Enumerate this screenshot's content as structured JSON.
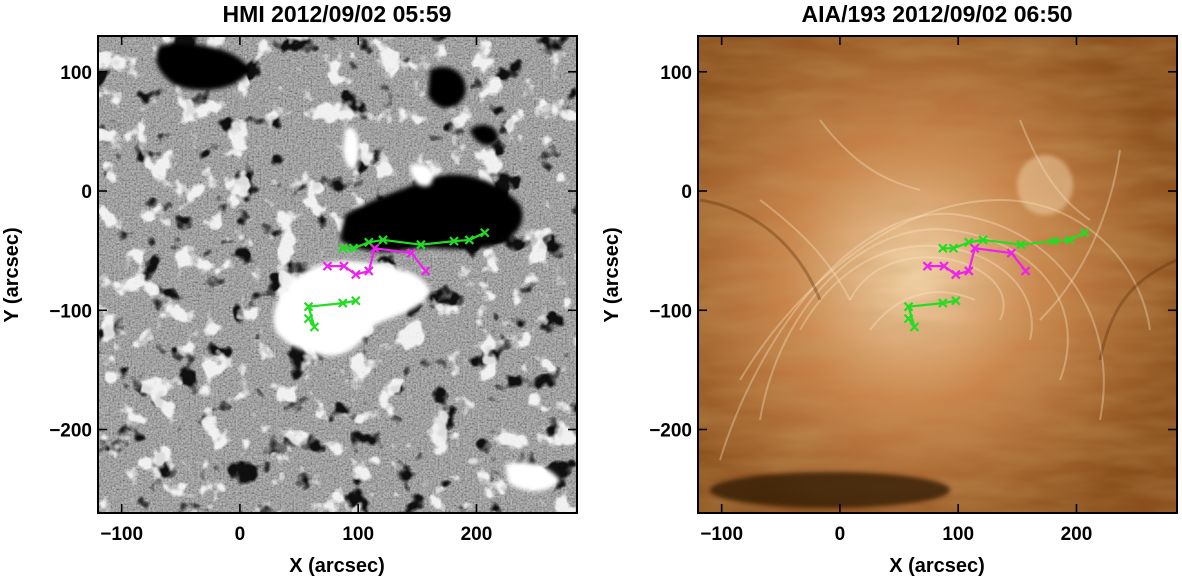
{
  "chart_data": [
    {
      "type": "scatter",
      "title": "HMI 2012/09/02 05:59",
      "xlabel": "X (arcsec)",
      "ylabel": "Y (arcsec)",
      "xlim": [
        -120,
        285
      ],
      "ylim": [
        -270,
        130
      ],
      "xticks": [
        -100,
        0,
        100,
        200
      ],
      "xtick_labels": [
        "−100",
        "0",
        "100",
        "200"
      ],
      "yticks": [
        100,
        0,
        -100,
        -200
      ],
      "ytick_labels": [
        "100",
        "0",
        "−100",
        "−200"
      ],
      "background": "grayscale magnetogram",
      "series": [
        {
          "color": "#22dd22",
          "x": [
            58,
            63,
            58,
            87,
            98
          ],
          "y": [
            -107,
            -114,
            -97,
            -94,
            -92
          ]
        },
        {
          "color": "#22dd22",
          "x": [
            87,
            96,
            109,
            121,
            153,
            181,
            194,
            207
          ],
          "y": [
            -48,
            -48,
            -43,
            -41,
            -45,
            -42,
            -41,
            -35
          ]
        },
        {
          "color": "#ee22ee",
          "x": [
            74,
            88,
            98,
            109,
            114,
            145,
            157
          ],
          "y": [
            -63,
            -63,
            -70,
            -67,
            -48,
            -52,
            -67
          ]
        }
      ]
    },
    {
      "type": "scatter",
      "title": "AIA/193 2012/09/02 06:50",
      "xlabel": "X (arcsec)",
      "ylabel": "Y (arcsec)",
      "xlim": [
        -120,
        285
      ],
      "ylim": [
        -270,
        130
      ],
      "xticks": [
        -100,
        0,
        100,
        200
      ],
      "xtick_labels": [
        "−100",
        "0",
        "100",
        "200"
      ],
      "yticks": [
        100,
        0,
        -100,
        -200
      ],
      "ytick_labels": [
        "100",
        "0",
        "−100",
        "−200"
      ],
      "background": "EUV 193 coronal loops",
      "series": [
        {
          "color": "#22dd22",
          "x": [
            58,
            63,
            58,
            87,
            98
          ],
          "y": [
            -107,
            -114,
            -97,
            -94,
            -92
          ]
        },
        {
          "color": "#22dd22",
          "x": [
            87,
            96,
            109,
            121,
            153,
            181,
            194,
            207
          ],
          "y": [
            -48,
            -48,
            -43,
            -41,
            -45,
            -42,
            -41,
            -35
          ]
        },
        {
          "color": "#ee22ee",
          "x": [
            74,
            88,
            98,
            109,
            114,
            145,
            157
          ],
          "y": [
            -63,
            -63,
            -70,
            -67,
            -48,
            -52,
            -67
          ]
        }
      ]
    }
  ]
}
